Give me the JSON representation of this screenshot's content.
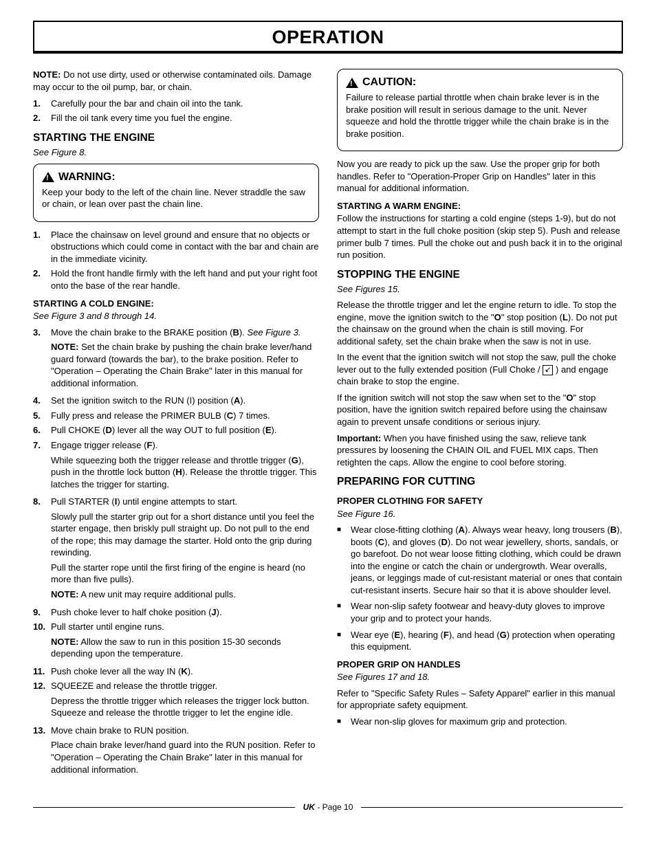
{
  "page": {
    "title": "OPERATION",
    "footer_region": "UK",
    "footer_page": "- Page 10"
  },
  "left": {
    "note1": "NOTE: Do not use dirty, used or otherwise contaminated oils. Damage may occur to the oil pump, bar, or chain.",
    "ol1": {
      "i1": "Carefully pour the bar and chain oil into the tank.",
      "i2": "Fill the oil tank every time you fuel the engine."
    },
    "starting_h": "STARTING THE ENGINE",
    "starting_fig": "See Figure 8.",
    "warn_label": "WARNING:",
    "warn_body": "Keep your body to the left of the chain line. Never straddle the saw or chain, or lean over past the chain line.",
    "ol2": {
      "i1": "Place the chainsaw on level ground and ensure that no objects or obstructions which could come in contact with the bar and chain are in the immediate vicinity.",
      "i2": "Hold the front handle firmly with the left hand and put your right foot onto the base of the rear handle."
    },
    "cold_h": "STARTING A COLD ENGINE:",
    "cold_fig": "See Figure 3 and 8 through 14.",
    "ol3": {
      "i3a": "Move the chain brake to the BRAKE position (B). See Figure 3.",
      "i3b": "NOTE: Set the chain brake by pushing the chain brake lever/hand guard forward (towards the bar), to the brake position. Refer to \"Operation – Operating the Chain Brake\" later in this manual for additional information.",
      "i4": "Set the ignition switch to the RUN (I) position (A).",
      "i5": "Fully press and release the PRIMER BULB (C) 7 times.",
      "i6": "Pull CHOKE (D) lever all the way OUT to full position (E).",
      "i7a": "Engage trigger release (F).",
      "i7b": "While squeezing both the trigger release and throttle trigger (G), push in the throttle lock button (H). Release the throttle trigger. This latches the trigger for starting.",
      "i8a": "Pull STARTER (I) until engine attempts to start.",
      "i8b": "Slowly pull the starter grip out for a short distance until you feel the starter engage, then briskly pull straight up. Do not pull to the end of the rope; this may damage the starter. Hold onto the grip during rewinding.",
      "i8c": "Pull the starter rope until the first firing of the engine is heard (no more than five pulls).",
      "i8d": "NOTE: A new unit may require additional pulls.",
      "i9": "Push choke lever to half choke position (J).",
      "i10a": "Pull starter until engine runs.",
      "i10b": "NOTE: Allow the saw to run in this position 15-30 seconds depending upon the temperature.",
      "i11": "Push choke lever all the way IN (K).",
      "i12a": "SQUEEZE and release the throttle trigger.",
      "i12b": "Depress the throttle trigger which releases the trigger lock button. Squeeze and release the throttle trigger to let the engine idle.",
      "i13a": "Move chain brake to RUN position.",
      "i13b": "Place chain brake lever/hand guard into the RUN position. Refer to \"Operation – Operating the Chain Brake\" later in this manual for additional information."
    }
  },
  "right": {
    "caution_label": "CAUTION:",
    "caution_body": "Failure to release partial throttle when chain brake lever is in the brake position will result in serious damage to the unit. Never squeeze and hold the throttle trigger while the chain brake is in the brake position.",
    "ready_p": "Now you are ready to pick up the saw. Use the proper grip for both handles. Refer to \"Operation-Proper Grip on Handles\" later in this manual for additional information.",
    "warm_h": "STARTING A WARM ENGINE:",
    "warm_p": "Follow the instructions for starting a cold engine (steps 1-9), but do not attempt to start in the full choke position (skip step 5). Push and release primer bulb 7 times. Pull the choke out and push back it in to the original run position.",
    "stop_h": "STOPPING THE ENGINE",
    "stop_fig": "See Figures 15.",
    "stop_p1": "Release the throttle trigger and let the engine return to idle. To stop the engine, move the ignition switch to the \"O\" stop position (L). Do not put the chainsaw on the ground when the chain is still moving. For additional safety, set the chain brake when the saw is not in use.",
    "stop_p2a": "In the event that the ignition switch will not stop the saw, pull the choke lever out to the fully extended position (Full Choke / ",
    "stop_p2b": " ) and engage chain brake to stop the engine.",
    "stop_p3": "If the ignition switch will not stop the saw when set to the \"O\" stop position, have the ignition switch repaired before using the chainsaw again to prevent unsafe conditions or serious injury.",
    "stop_p4": "Important: When you have finished using the saw, relieve tank pressures by loosening the CHAIN OIL and FUEL MIX caps. Then retighten the caps. Allow the engine to cool before storing.",
    "prep_h": "PREPARING FOR CUTTING",
    "cloth_h": "PROPER CLOTHING FOR SAFETY",
    "cloth_fig": "See Figure 16.",
    "cloth_li1": "Wear close-fitting clothing (A). Always wear heavy, long trousers (B), boots (C), and gloves (D). Do not wear jewellery, shorts, sandals, or go barefoot. Do not wear loose fitting clothing, which could be drawn into the engine or catch the chain or undergrowth. Wear overalls, jeans, or leggings made of cut-resistant material or ones that contain cut-resistant inserts. Secure hair so that it is above shoulder level.",
    "cloth_li2": "Wear non-slip safety footwear and heavy-duty gloves to improve your grip and to protect your hands.",
    "cloth_li3": "Wear eye (E), hearing (F), and head (G) protection when operating this equipment.",
    "grip_h": "PROPER GRIP ON HANDLES",
    "grip_fig": "See Figures 17 and 18.",
    "grip_p": "Refer to \"Specific Safety Rules – Safety Apparel\" earlier in this manual for appropriate safety equipment.",
    "grip_li1": "Wear non-slip gloves for maximum grip and protection."
  }
}
